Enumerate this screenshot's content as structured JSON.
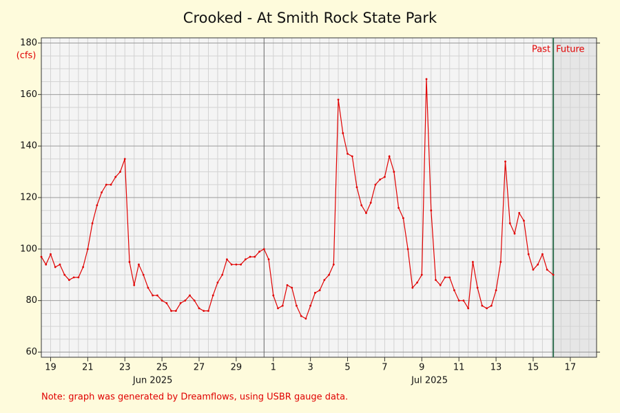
{
  "chart_data": {
    "type": "line",
    "title": "Crooked - At Smith Rock State Park",
    "y_label": "(cfs)",
    "note": "Note: graph was generated by Dreamflows, using USBR gauge data.",
    "past_label": "Past",
    "future_label": "Future",
    "color": "#e00000",
    "grid": true,
    "xlim": [
      "2025-06-19T00:00",
      "2025-07-18T22:00"
    ],
    "ylim": [
      58,
      182
    ],
    "yticks": [
      60,
      80,
      100,
      120,
      140,
      160,
      180
    ],
    "yticks_minor": [
      65,
      70,
      75,
      85,
      90,
      95,
      105,
      110,
      115,
      125,
      130,
      135,
      145,
      150,
      155,
      165,
      170,
      175
    ],
    "xticks": [
      {
        "value": "2025-06-19T12:00",
        "label": "19"
      },
      {
        "value": "2025-06-21T12:00",
        "label": "21"
      },
      {
        "value": "2025-06-23T12:00",
        "label": "23"
      },
      {
        "value": "2025-06-25T12:00",
        "label": "25"
      },
      {
        "value": "2025-06-27T12:00",
        "label": "27"
      },
      {
        "value": "2025-06-29T12:00",
        "label": "29"
      },
      {
        "value": "2025-07-01T12:00",
        "label": "1"
      },
      {
        "value": "2025-07-03T12:00",
        "label": "3"
      },
      {
        "value": "2025-07-05T12:00",
        "label": "5"
      },
      {
        "value": "2025-07-07T12:00",
        "label": "7"
      },
      {
        "value": "2025-07-09T12:00",
        "label": "9"
      },
      {
        "value": "2025-07-11T12:00",
        "label": "11"
      },
      {
        "value": "2025-07-13T12:00",
        "label": "13"
      },
      {
        "value": "2025-07-15T12:00",
        "label": "15"
      },
      {
        "value": "2025-07-17T12:00",
        "label": "17"
      }
    ],
    "xgrid": [
      "2025-06-19T00:00",
      "2025-06-20T00:00",
      "2025-06-20T12:00",
      "2025-06-21T00:00",
      "2025-06-22T00:00",
      "2025-06-22T12:00",
      "2025-06-23T00:00",
      "2025-06-24T00:00",
      "2025-06-24T12:00",
      "2025-06-25T00:00",
      "2025-06-26T00:00",
      "2025-06-26T12:00",
      "2025-06-27T00:00",
      "2025-06-28T00:00",
      "2025-06-28T12:00",
      "2025-06-29T00:00",
      "2025-06-30T00:00",
      "2025-06-30T12:00",
      "2025-07-02T00:00",
      "2025-07-02T12:00",
      "2025-07-03T00:00",
      "2025-07-04T00:00",
      "2025-07-04T12:00",
      "2025-07-05T00:00",
      "2025-07-06T00:00",
      "2025-07-06T12:00",
      "2025-07-07T00:00",
      "2025-07-08T00:00",
      "2025-07-08T12:00",
      "2025-07-09T00:00",
      "2025-07-10T00:00",
      "2025-07-10T12:00",
      "2025-07-11T00:00",
      "2025-07-12T00:00",
      "2025-07-12T12:00",
      "2025-07-13T00:00",
      "2025-07-14T00:00",
      "2025-07-14T12:00",
      "2025-07-15T00:00",
      "2025-07-16T00:00",
      "2025-07-16T12:00",
      "2025-07-17T00:00",
      "2025-07-18T00:00",
      "2025-07-18T12:00"
    ],
    "month_lines": [
      "2025-07-01T00:00"
    ],
    "month_labels": [
      {
        "value": "2025-06-25T00:00",
        "label": "Jun 2025"
      },
      {
        "value": "2025-07-09T22:00",
        "label": "Jul 2025"
      }
    ],
    "x": [
      "2025-06-19T00:00",
      "2025-06-19T06:00",
      "2025-06-19T12:00",
      "2025-06-19T18:00",
      "2025-06-20T00:00",
      "2025-06-20T06:00",
      "2025-06-20T12:00",
      "2025-06-20T18:00",
      "2025-06-21T00:00",
      "2025-06-21T06:00",
      "2025-06-21T12:00",
      "2025-06-21T18:00",
      "2025-06-22T00:00",
      "2025-06-22T06:00",
      "2025-06-22T12:00",
      "2025-06-22T18:00",
      "2025-06-23T00:00",
      "2025-06-23T06:00",
      "2025-06-23T12:00",
      "2025-06-23T18:00",
      "2025-06-24T00:00",
      "2025-06-24T06:00",
      "2025-06-24T12:00",
      "2025-06-24T18:00",
      "2025-06-25T00:00",
      "2025-06-25T06:00",
      "2025-06-25T12:00",
      "2025-06-25T18:00",
      "2025-06-26T00:00",
      "2025-06-26T06:00",
      "2025-06-26T12:00",
      "2025-06-26T18:00",
      "2025-06-27T00:00",
      "2025-06-27T06:00",
      "2025-06-27T12:00",
      "2025-06-27T18:00",
      "2025-06-28T00:00",
      "2025-06-28T06:00",
      "2025-06-28T12:00",
      "2025-06-28T18:00",
      "2025-06-29T00:00",
      "2025-06-29T06:00",
      "2025-06-29T12:00",
      "2025-06-29T18:00",
      "2025-06-30T00:00",
      "2025-06-30T06:00",
      "2025-06-30T12:00",
      "2025-06-30T18:00",
      "2025-07-01T00:00",
      "2025-07-01T06:00",
      "2025-07-01T12:00",
      "2025-07-01T18:00",
      "2025-07-02T00:00",
      "2025-07-02T06:00",
      "2025-07-02T12:00",
      "2025-07-02T18:00",
      "2025-07-03T00:00",
      "2025-07-03T06:00",
      "2025-07-03T12:00",
      "2025-07-03T18:00",
      "2025-07-04T00:00",
      "2025-07-04T06:00",
      "2025-07-04T12:00",
      "2025-07-04T18:00",
      "2025-07-05T00:00",
      "2025-07-05T06:00",
      "2025-07-05T12:00",
      "2025-07-05T18:00",
      "2025-07-06T00:00",
      "2025-07-06T06:00",
      "2025-07-06T12:00",
      "2025-07-06T18:00",
      "2025-07-07T00:00",
      "2025-07-07T06:00",
      "2025-07-07T12:00",
      "2025-07-07T18:00",
      "2025-07-08T00:00",
      "2025-07-08T06:00",
      "2025-07-08T12:00",
      "2025-07-08T18:00",
      "2025-07-09T00:00",
      "2025-07-09T06:00",
      "2025-07-09T12:00",
      "2025-07-09T18:00",
      "2025-07-10T00:00",
      "2025-07-10T06:00",
      "2025-07-10T12:00",
      "2025-07-10T18:00",
      "2025-07-11T00:00",
      "2025-07-11T06:00",
      "2025-07-11T12:00",
      "2025-07-11T18:00",
      "2025-07-12T00:00",
      "2025-07-12T06:00",
      "2025-07-12T12:00",
      "2025-07-12T18:00",
      "2025-07-13T00:00",
      "2025-07-13T06:00",
      "2025-07-13T12:00",
      "2025-07-13T18:00",
      "2025-07-14T00:00",
      "2025-07-14T06:00",
      "2025-07-14T12:00",
      "2025-07-14T18:00",
      "2025-07-15T00:00",
      "2025-07-15T06:00",
      "2025-07-15T12:00",
      "2025-07-15T18:00",
      "2025-07-16T00:00",
      "2025-07-16T06:00",
      "2025-07-16T14:00"
    ],
    "values": [
      97,
      94,
      98,
      93,
      94,
      90,
      88,
      89,
      89,
      93,
      100,
      110,
      117,
      122,
      125,
      125,
      128,
      130,
      135,
      95,
      86,
      94,
      90,
      85,
      82,
      82,
      80,
      79,
      76,
      76,
      79,
      80,
      82,
      80,
      77,
      76,
      76,
      82,
      87,
      90,
      96,
      94,
      94,
      94,
      96,
      97,
      97,
      99,
      100,
      96,
      82,
      77,
      78,
      86,
      85,
      78,
      74,
      73,
      78,
      83,
      84,
      88,
      90,
      94,
      158,
      145,
      137,
      136,
      124,
      117,
      114,
      118,
      125,
      127,
      128,
      136,
      130,
      116,
      112,
      100,
      85,
      87,
      90,
      166,
      115,
      88,
      86,
      89,
      89,
      84,
      80,
      80,
      77,
      95,
      85,
      78,
      77,
      78,
      84,
      95,
      134,
      110,
      106,
      114,
      111,
      98,
      92,
      94,
      98,
      92,
      90
    ]
  }
}
